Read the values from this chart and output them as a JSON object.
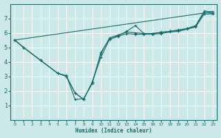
{
  "xlabel": "Humidex (Indice chaleur)",
  "background_color": "#cce8e8",
  "grid_color": "#ffffff",
  "line_color": "#1a6b6b",
  "xlim": [
    -0.5,
    23.5
  ],
  "ylim": [
    0,
    8
  ],
  "xticks": [
    0,
    1,
    2,
    3,
    4,
    5,
    6,
    7,
    8,
    9,
    10,
    11,
    12,
    13,
    14,
    15,
    16,
    17,
    18,
    19,
    20,
    21,
    22,
    23
  ],
  "yticks": [
    1,
    2,
    3,
    4,
    5,
    6,
    7
  ],
  "lines": [
    {
      "x": [
        0,
        1,
        3,
        5,
        6,
        7,
        8,
        9,
        10,
        11,
        12,
        13,
        14,
        15,
        16,
        17,
        18,
        19,
        20,
        21,
        22,
        23
      ],
      "y": [
        5.5,
        5.0,
        4.1,
        3.2,
        3.0,
        1.85,
        1.4,
        2.6,
        4.3,
        5.55,
        5.8,
        6.1,
        6.5,
        5.95,
        5.95,
        6.0,
        6.1,
        6.15,
        6.3,
        6.5,
        7.5,
        7.45
      ],
      "marker": true
    },
    {
      "x": [
        0,
        1,
        3,
        5,
        6,
        7,
        8,
        9,
        10,
        11,
        12,
        13,
        14,
        15,
        16,
        17,
        18,
        19,
        20,
        21,
        22,
        23
      ],
      "y": [
        5.5,
        5.0,
        4.1,
        3.2,
        3.0,
        1.85,
        1.4,
        2.6,
        4.55,
        5.65,
        5.85,
        6.05,
        6.0,
        5.95,
        5.95,
        6.05,
        6.1,
        6.2,
        6.3,
        6.45,
        7.4,
        7.35
      ],
      "marker": true
    },
    {
      "x": [
        0,
        1,
        3,
        5,
        6,
        7,
        8,
        9,
        10,
        11,
        12,
        13,
        14,
        15,
        16,
        17,
        18,
        19,
        20,
        21,
        22,
        23
      ],
      "y": [
        5.5,
        5.0,
        4.1,
        3.2,
        3.05,
        1.4,
        1.45,
        2.5,
        4.65,
        5.55,
        5.75,
        5.95,
        5.9,
        5.9,
        5.9,
        5.95,
        6.05,
        6.1,
        6.25,
        6.4,
        7.3,
        7.3
      ],
      "marker": true
    },
    {
      "x": [
        0,
        23
      ],
      "y": [
        5.5,
        7.45
      ],
      "marker": false
    }
  ],
  "xlabel_fontsize": 5.5,
  "ytick_fontsize": 6,
  "xtick_fontsize": 4.5,
  "figsize": [
    3.2,
    2.0
  ],
  "dpi": 100
}
